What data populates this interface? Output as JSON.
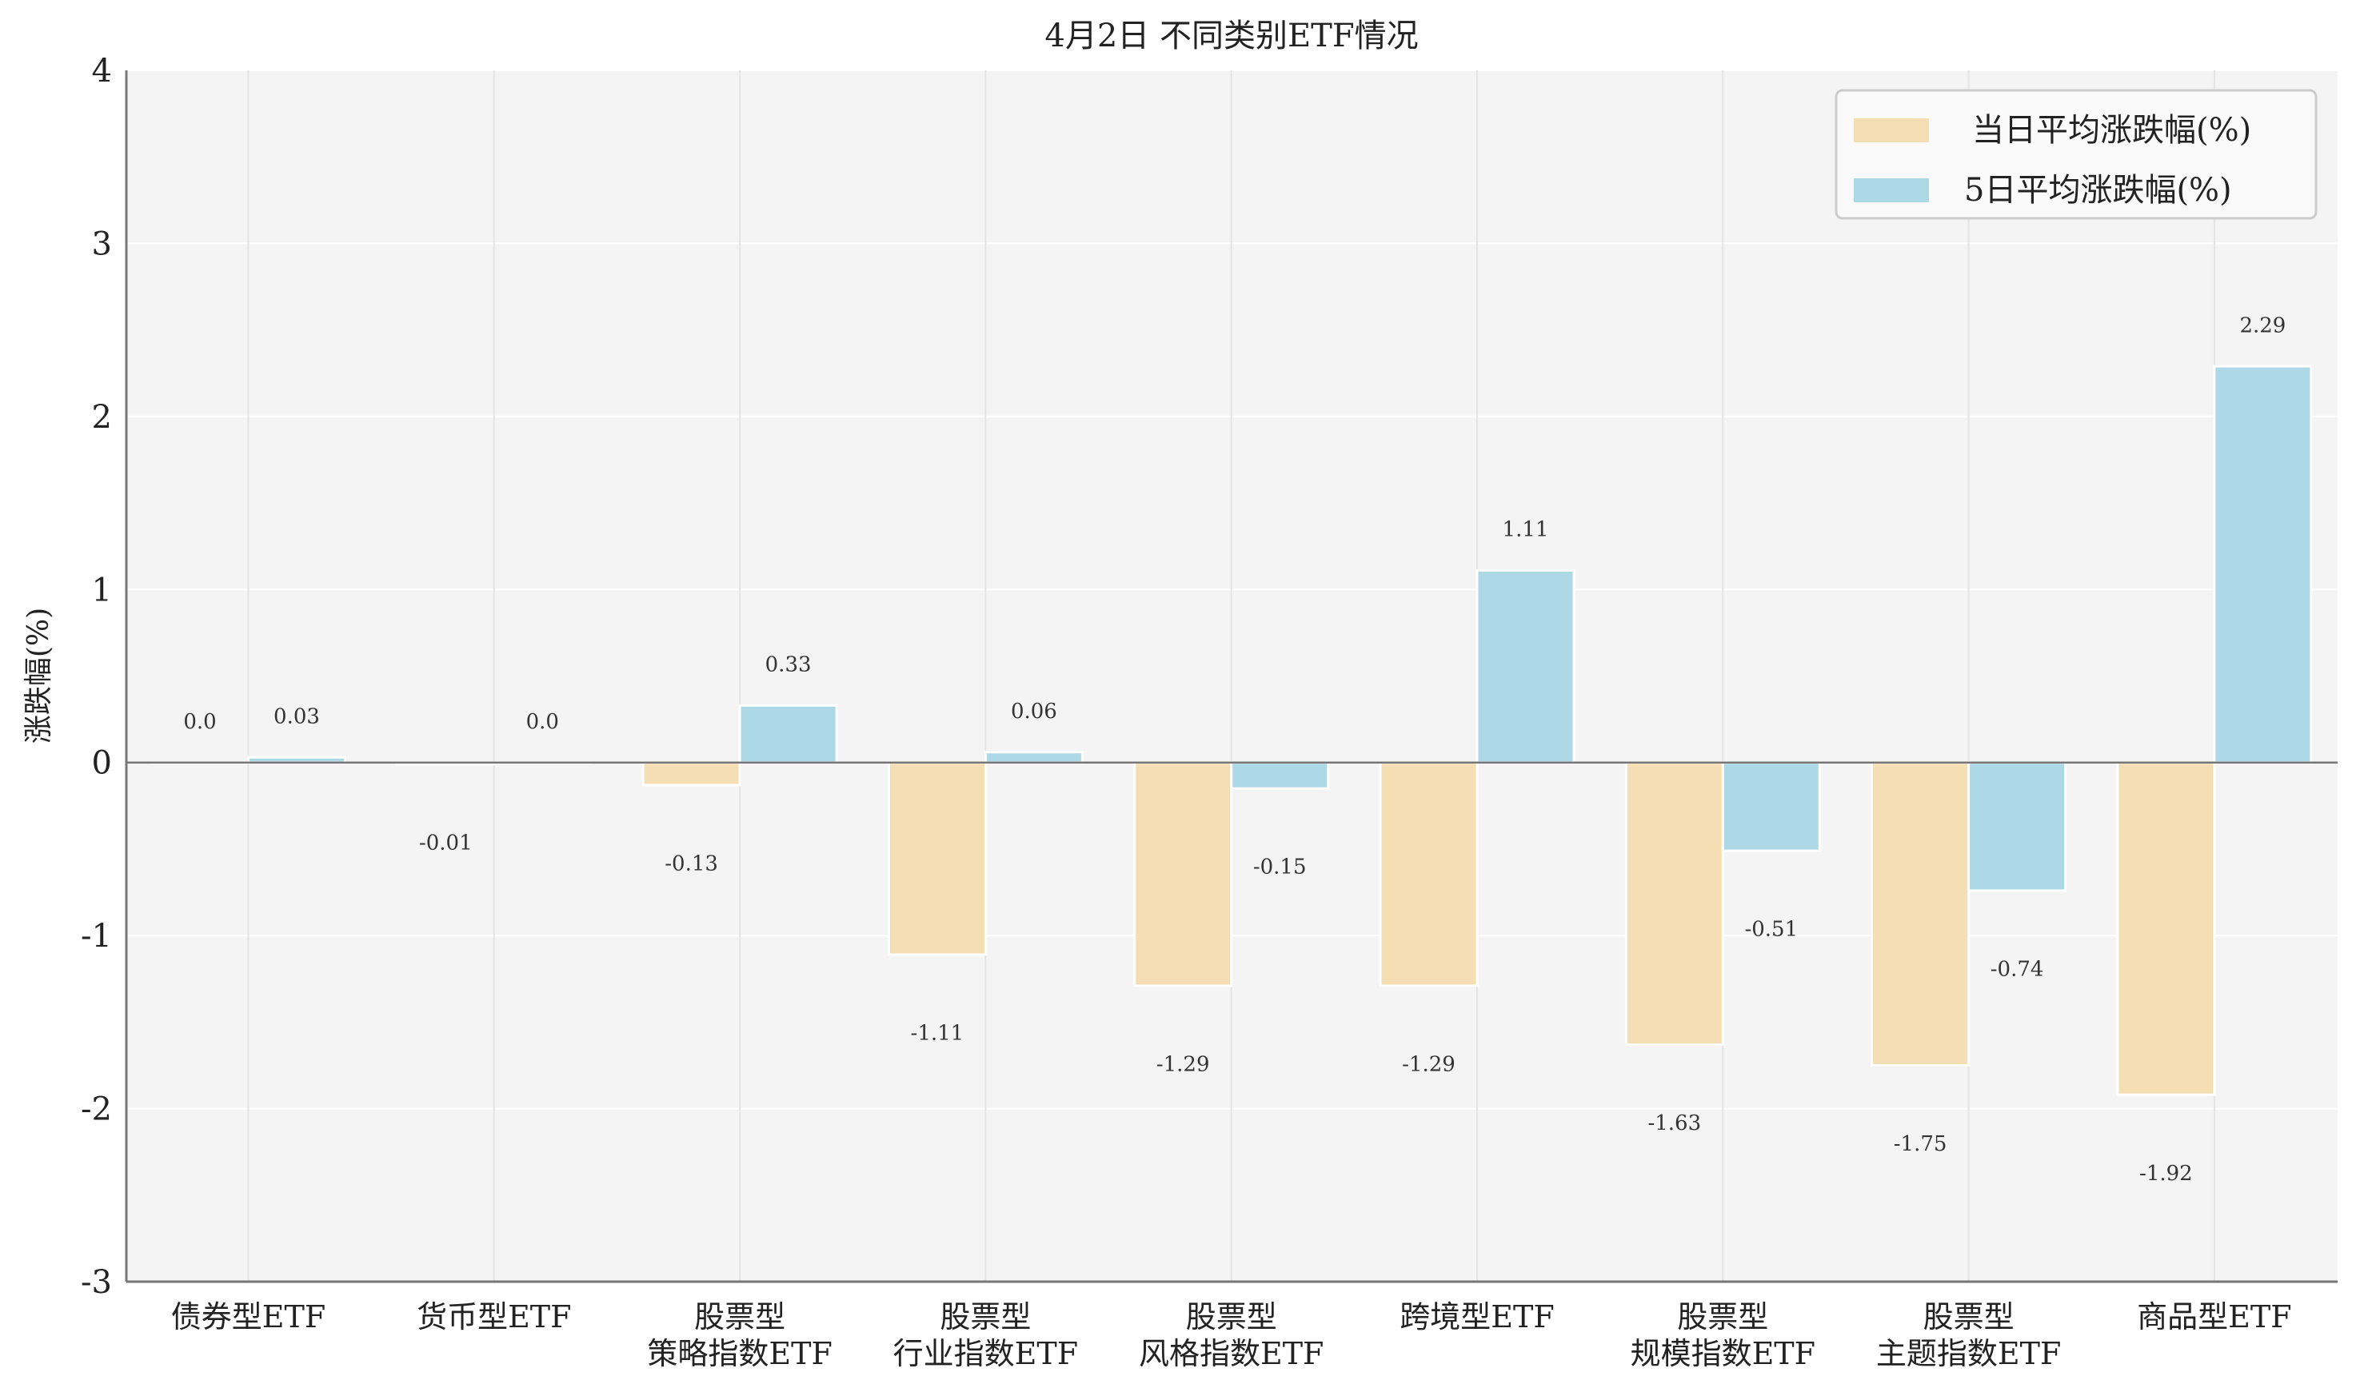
{
  "chart_data": {
    "type": "bar",
    "title": "4月2日 不同类别ETF情况",
    "xlabel": "",
    "ylabel": "涨跌幅(%)",
    "ylim": [
      -3,
      4
    ],
    "yticks": [
      "-3",
      "-2",
      "-1",
      "0",
      "1",
      "2",
      "3",
      "4"
    ],
    "grid": true,
    "legend_position": "top-right",
    "categories": [
      [
        "债券型ETF"
      ],
      [
        "货币型ETF"
      ],
      [
        "股票型",
        "策略指数ETF"
      ],
      [
        "股票型",
        "行业指数ETF"
      ],
      [
        "股票型",
        "风格指数ETF"
      ],
      [
        "跨境型ETF"
      ],
      [
        "股票型",
        "规模指数ETF"
      ],
      [
        "股票型",
        "主题指数ETF"
      ],
      [
        "商品型ETF"
      ]
    ],
    "series": [
      {
        "name": "当日平均涨跌幅(%)",
        "color": "#f5deb3",
        "values": [
          0.0,
          -0.01,
          -0.13,
          -1.11,
          -1.29,
          -1.29,
          -1.63,
          -1.75,
          -1.92
        ],
        "labels": [
          "0.0",
          "-0.01",
          "-0.13",
          "-1.11",
          "-1.29",
          "-1.29",
          "-1.63",
          "-1.75",
          "-1.92"
        ]
      },
      {
        "name": "5日平均涨跌幅(%)",
        "color": "#add8e6",
        "values": [
          0.03,
          0.0,
          0.33,
          0.06,
          -0.15,
          1.11,
          -0.51,
          -0.74,
          2.29
        ],
        "labels": [
          "0.03",
          "0.0",
          "0.33",
          "0.06",
          "-0.15",
          "1.11",
          "-0.51",
          "-0.74",
          "2.29"
        ]
      }
    ]
  }
}
